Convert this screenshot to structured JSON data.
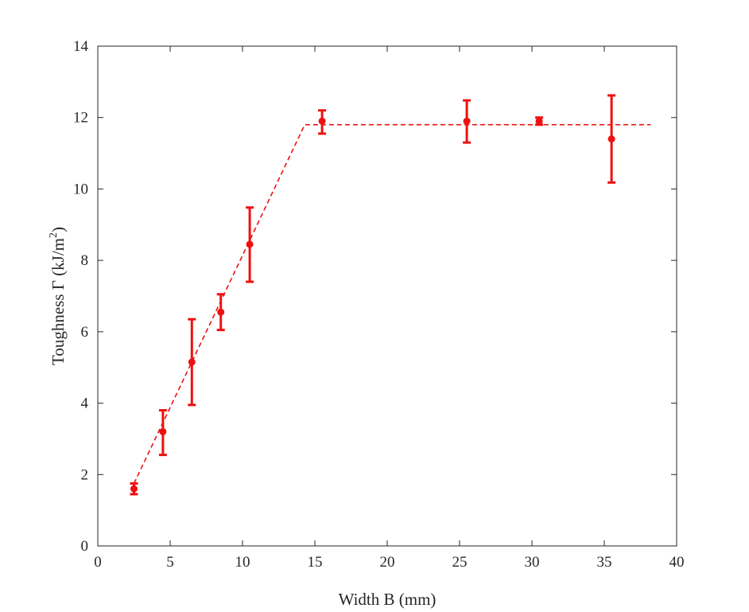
{
  "chart_data": {
    "type": "scatter",
    "title": "",
    "xlabel": "Width B (mm)",
    "ylabel": {
      "prefix": "Toughness Γ (kJ/m",
      "superscript": "2",
      "suffix": ")"
    },
    "xlim": [
      0,
      40
    ],
    "ylim": [
      0,
      14
    ],
    "xticks": [
      "0",
      "5",
      "10",
      "15",
      "20",
      "25",
      "30",
      "35",
      "40"
    ],
    "yticks": [
      "0",
      "2",
      "4",
      "6",
      "8",
      "10",
      "12",
      "14"
    ],
    "grid": false,
    "color": "#ee1111",
    "series": [
      {
        "marker": "circle",
        "points": [
          {
            "x": 2.5,
            "y": 1.6,
            "err_low": 1.45,
            "err_high": 1.75
          },
          {
            "x": 4.5,
            "y": 3.2,
            "err_low": 2.55,
            "err_high": 3.8
          },
          {
            "x": 6.5,
            "y": 5.15,
            "err_low": 3.95,
            "err_high": 6.35
          },
          {
            "x": 8.5,
            "y": 6.55,
            "err_low": 6.05,
            "err_high": 7.05
          },
          {
            "x": 10.5,
            "y": 8.45,
            "err_low": 7.4,
            "err_high": 9.48
          },
          {
            "x": 15.5,
            "y": 11.9,
            "err_low": 11.55,
            "err_high": 12.2
          },
          {
            "x": 25.5,
            "y": 11.9,
            "err_low": 11.3,
            "err_high": 12.48
          },
          {
            "x": 30.5,
            "y": 11.9,
            "err_low": 11.8,
            "err_high": 12.0
          },
          {
            "x": 35.5,
            "y": 11.4,
            "err_low": 10.18,
            "err_high": 12.62
          }
        ]
      }
    ],
    "fit_line": {
      "style": "dashed",
      "points": [
        {
          "x": 2.5,
          "y": 1.75
        },
        {
          "x": 14.3,
          "y": 11.8
        },
        {
          "x": 38.2,
          "y": 11.8
        }
      ]
    }
  }
}
